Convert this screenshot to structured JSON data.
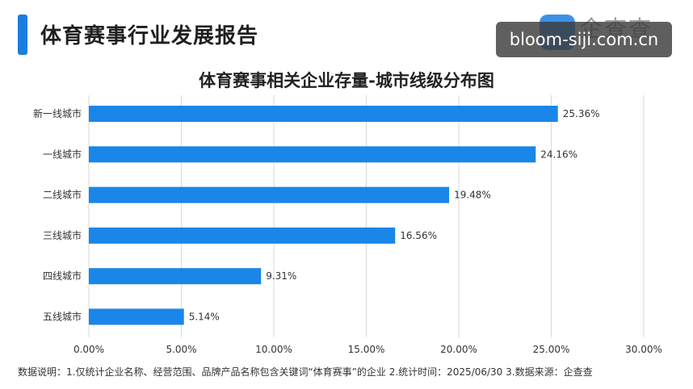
{
  "header": {
    "title": "体育赛事行业发展报告",
    "logo_text": "企查查",
    "watermark": "bloom-siji.com.cn"
  },
  "chart_data": {
    "type": "bar",
    "orientation": "horizontal",
    "title": "体育赛事相关企业存量-城市线级分布图",
    "categories": [
      "新一线城市",
      "一线城市",
      "二线城市",
      "三线城市",
      "四线城市",
      "五线城市"
    ],
    "values": [
      25.36,
      24.16,
      19.48,
      16.56,
      9.31,
      5.14
    ],
    "value_labels": [
      "25.36%",
      "24.16%",
      "19.48%",
      "16.56%",
      "9.31%",
      "5.14%"
    ],
    "x_ticks": [
      0,
      5,
      10,
      15,
      20,
      25,
      30
    ],
    "x_tick_labels": [
      "0.00%",
      "5.00%",
      "10.00%",
      "15.00%",
      "20.00%",
      "25.00%",
      "30.00%"
    ],
    "xlim": [
      0,
      30
    ],
    "grid": true,
    "bar_color": "#1a86e8",
    "grid_color": "#d9d9d9"
  },
  "footnote": "数据说明：1.仅统计企业名称、经营范围、品牌产品名称包含关键词“体育赛事”的企业  2.统计时间：2025/06/30  3.数据来源：企查查"
}
